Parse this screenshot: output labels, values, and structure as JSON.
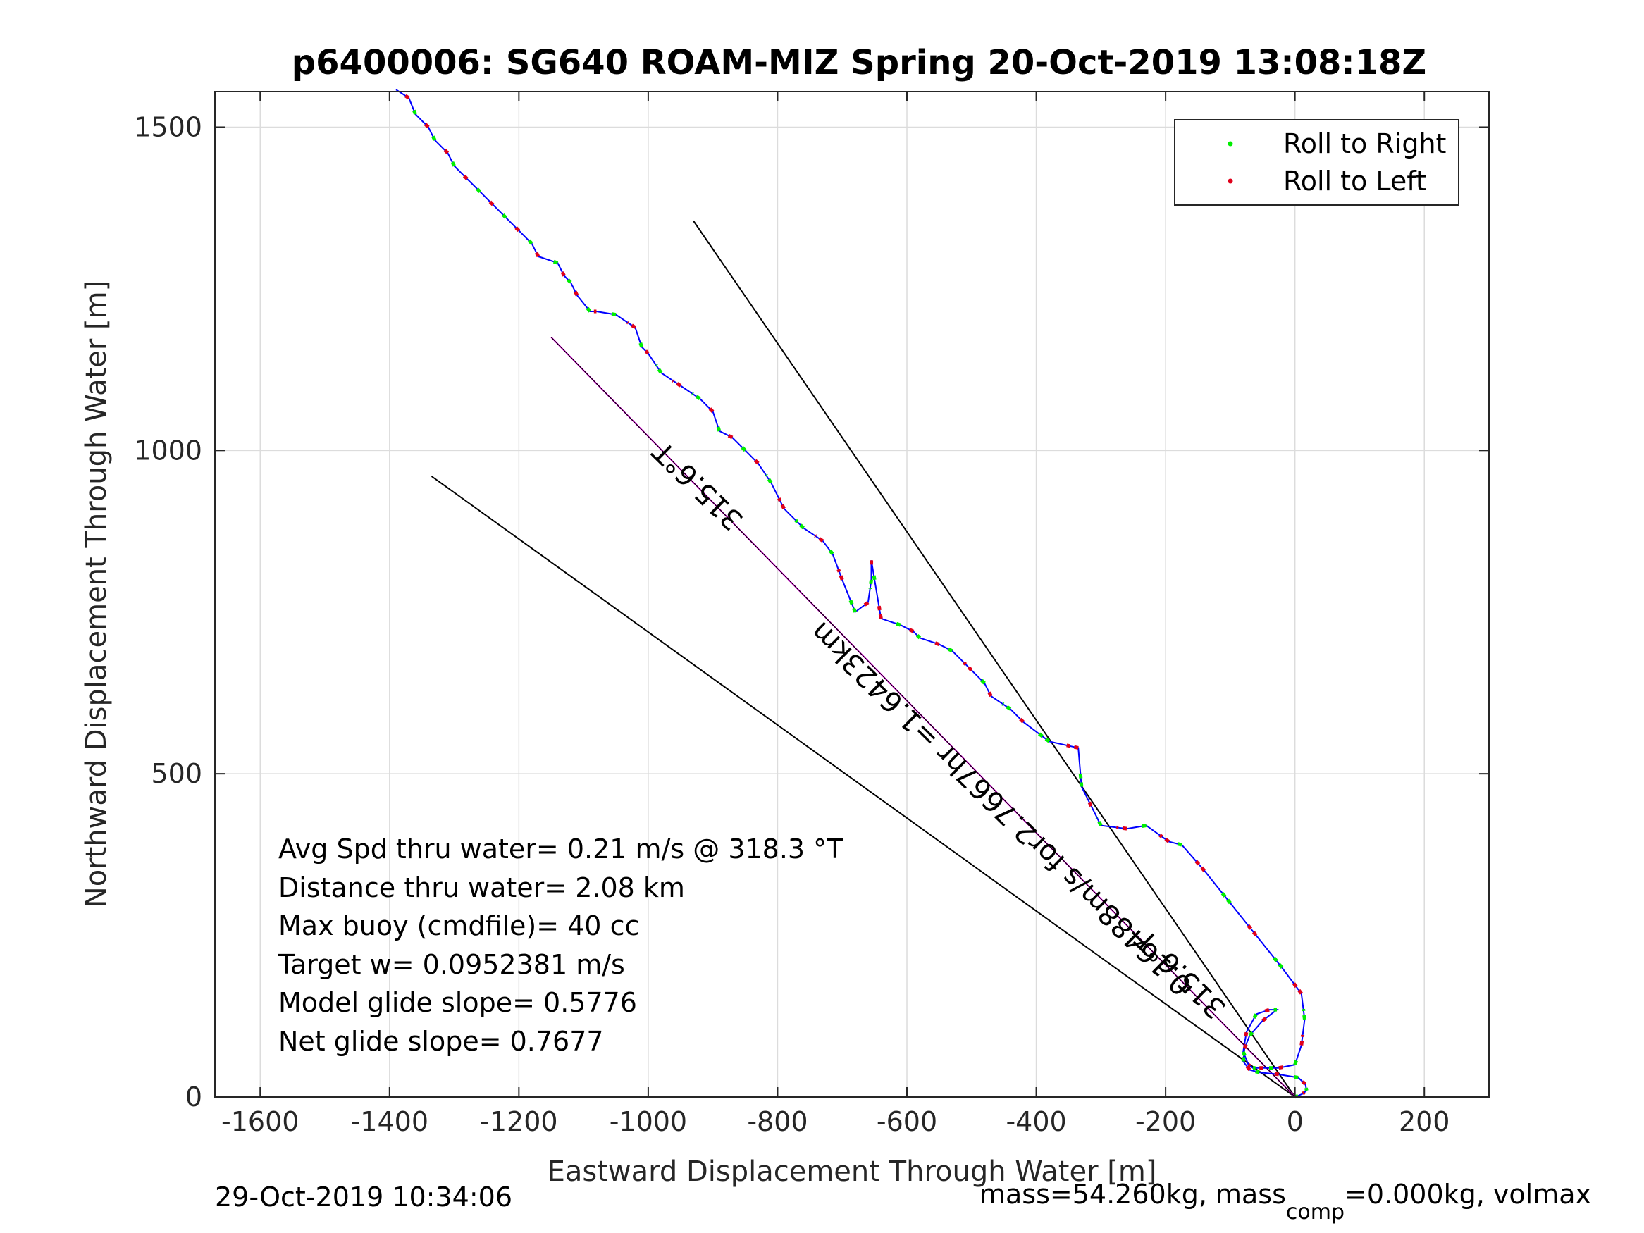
{
  "title": "p6400006: SG640 ROAM-MIZ Spring 20-Oct-2019 13:08:18Z",
  "footer": {
    "timestamp": "29-Oct-2019 10:34:06",
    "mass_text": "mass=54.260kg, mass",
    "mass_sub": "comp",
    "mass_rest": "=0.000kg, volmax"
  },
  "stats_lines": [
    "Avg Spd thru water=  0.21 m/s @ 318.3 °T",
    "Distance thru water=  2.08 km",
    "Max buoy (cmdfile)= 40 cc",
    "Target w= 0.0952381 m/s",
    "Model glide slope= 0.5776",
    "Net glide slope= 0.7677"
  ],
  "annotations": {
    "heading_upper": "315.6°T",
    "heading_lower": "315.6°T",
    "current_label": "0.16488m/s for2.7667hr =1.6423km"
  },
  "colors": {
    "track": "#0000ff",
    "roll_right": "#00ee00",
    "roll_left": "#e0001a",
    "current_line": "#ff00ff",
    "guide_line": "#000000",
    "grid": "#dcdcdc"
  },
  "chart_data": {
    "type": "line",
    "title": "p6400006: SG640 ROAM-MIZ Spring 20-Oct-2019 13:08:18Z",
    "xlabel": "Eastward Displacement Through Water [m]",
    "ylabel": "Northward Displacement Through Water [m]",
    "xlim": [
      -1670,
      300
    ],
    "ylim": [
      0,
      1555
    ],
    "xticks": [
      -1600,
      -1400,
      -1200,
      -1000,
      -800,
      -600,
      -400,
      -200,
      0,
      200
    ],
    "yticks": [
      0,
      500,
      1000,
      1500
    ],
    "grid": true,
    "legend_position": "top-right",
    "legend": [
      {
        "label": "Roll to Right",
        "color": "#00ee00"
      },
      {
        "label": "Roll to Left",
        "color": "#e0001a"
      }
    ],
    "series": [
      {
        "name": "track",
        "x": [
          0,
          12,
          18,
          16,
          5,
          -25,
          -55,
          -70,
          -80,
          -78,
          -70,
          -50,
          -28,
          -40,
          -60,
          -75,
          -80,
          -72,
          -65,
          -55,
          -40,
          -25,
          0,
          10,
          15,
          10,
          -20,
          -60,
          -100,
          -140,
          -175,
          -195,
          -230,
          -260,
          -300,
          -315,
          -330,
          -335,
          -380,
          -420,
          -440,
          -470,
          -480,
          -500,
          -530,
          -550,
          -580,
          -590,
          -610,
          -640,
          -650,
          -655,
          -655,
          -660,
          -680,
          -700,
          -715,
          -730,
          -760,
          -790,
          -810,
          -830,
          -850,
          -870,
          -890,
          -900,
          -920,
          -950,
          -980,
          -1000,
          -1010,
          -1020,
          -1050,
          -1080,
          -1090,
          -1110,
          -1120,
          -1130,
          -1140,
          -1170,
          -1180,
          -1200,
          -1220,
          -1240,
          -1260,
          -1280,
          -1300,
          -1310,
          -1330,
          -1340,
          -1360,
          -1370,
          -1390
        ],
        "y": [
          0,
          5,
          10,
          20,
          30,
          35,
          38,
          42,
          55,
          75,
          95,
          118,
          135,
          135,
          128,
          100,
          70,
          50,
          45,
          45,
          45,
          45,
          50,
          80,
          120,
          160,
          200,
          250,
          300,
          350,
          390,
          395,
          420,
          415,
          420,
          450,
          480,
          540,
          550,
          580,
          600,
          620,
          640,
          660,
          690,
          700,
          710,
          720,
          730,
          740,
          800,
          830,
          800,
          765,
          750,
          800,
          840,
          860,
          880,
          910,
          950,
          980,
          1000,
          1020,
          1030,
          1060,
          1080,
          1100,
          1120,
          1150,
          1160,
          1190,
          1210,
          1215,
          1215,
          1240,
          1260,
          1270,
          1290,
          1300,
          1320,
          1340,
          1360,
          1380,
          1400,
          1420,
          1440,
          1460,
          1480,
          1500,
          1520,
          1545,
          1558
        ]
      },
      {
        "name": "current",
        "x": [
          0,
          -1150
        ],
        "y": [
          0,
          1175
        ]
      },
      {
        "name": "guide-steep",
        "x": [
          0,
          -930
        ],
        "y": [
          0,
          1355
        ]
      },
      {
        "name": "guide-shallow",
        "x": [
          0,
          -1335
        ],
        "y": [
          0,
          960
        ]
      }
    ]
  }
}
